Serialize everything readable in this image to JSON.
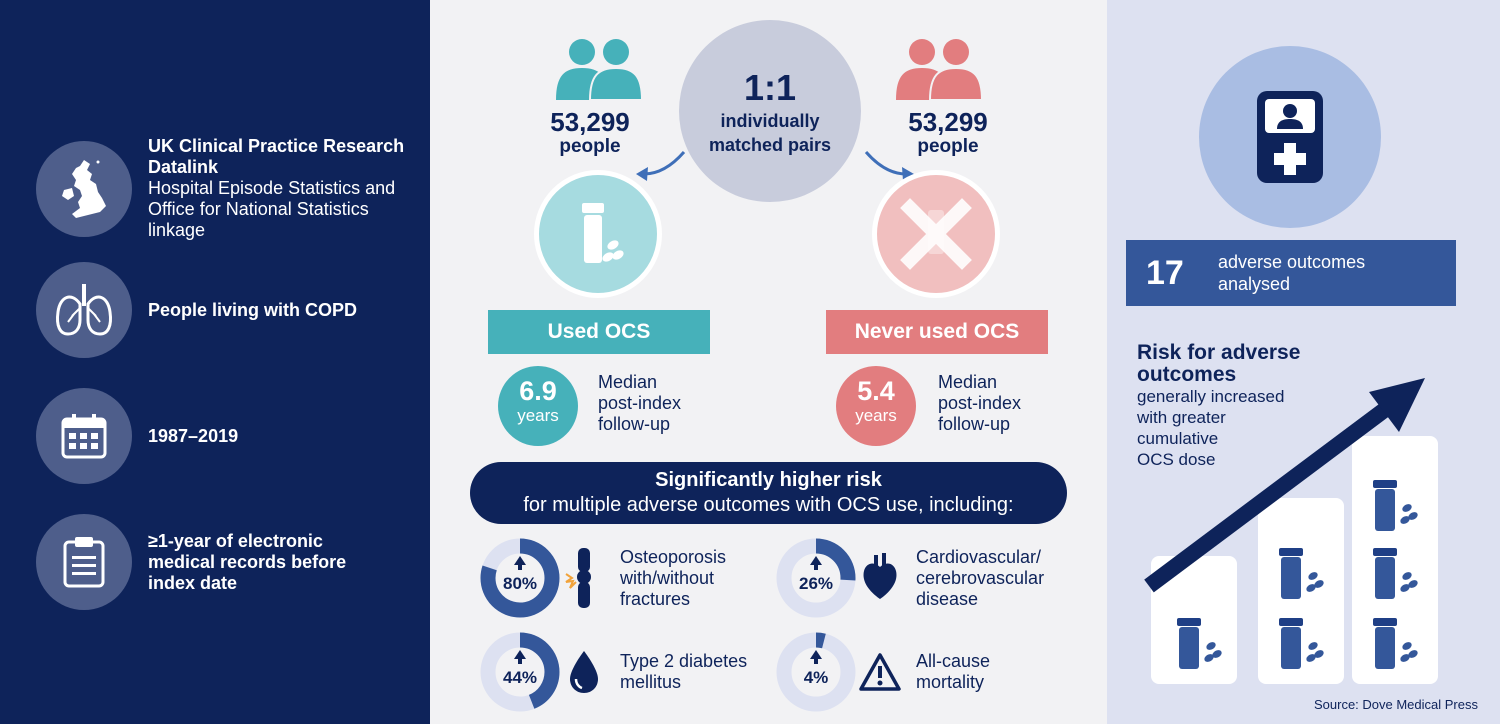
{
  "left": {
    "items": [
      {
        "icon": "uk-map-icon",
        "bold": "UK Clinical Practice Research Datalink",
        "text": "Hospital Episode Statistics and Office for National Statistics linkage"
      },
      {
        "icon": "lungs-icon",
        "bold": "People living with COPD",
        "text": ""
      },
      {
        "icon": "calendar-icon",
        "bold": "1987–2019",
        "text": ""
      },
      {
        "icon": "clipboard-icon",
        "bold": "≥1-year of electronic medical records before index date",
        "text": ""
      }
    ]
  },
  "center": {
    "ratio": {
      "value": "1:1",
      "label_line1": "individually",
      "label_line2": "matched pairs"
    },
    "used": {
      "count": "53,299",
      "unit": "people",
      "label": "Used OCS",
      "years": "6.9",
      "years_unit": "years",
      "median_l1": "Median",
      "median_l2": "post-index",
      "median_l3": "follow-up"
    },
    "never": {
      "count": "53,299",
      "unit": "people",
      "label": "Never used OCS",
      "years": "5.4",
      "years_unit": "years",
      "median_l1": "Median",
      "median_l2": "post-index",
      "median_l3": "follow-up"
    },
    "banner": {
      "line1": "Significantly higher risk",
      "line2": "for multiple adverse outcomes with OCS use, including:"
    },
    "outcomes": [
      {
        "pct_label": "80%",
        "pct": 0.8,
        "icon": "bone-joint-icon",
        "l1": "Osteoporosis",
        "l2": "with/without",
        "l3": "fractures"
      },
      {
        "pct_label": "26%",
        "pct": 0.26,
        "icon": "heart-icon",
        "l1": "Cardiovascular/",
        "l2": "cerebrovascular",
        "l3": "disease"
      },
      {
        "pct_label": "44%",
        "pct": 0.44,
        "icon": "drop-icon",
        "l1": "Type 2 diabetes",
        "l2": "mellitus",
        "l3": ""
      },
      {
        "pct_label": "4%",
        "pct": 0.04,
        "icon": "warning-icon",
        "l1": "All-cause",
        "l2": "mortality",
        "l3": ""
      }
    ]
  },
  "right": {
    "device_icon": "medical-id-icon",
    "stat_number": "17",
    "stat_l1": "adverse outcomes",
    "stat_l2": "analysed",
    "risk_title_l1": "Risk for adverse",
    "risk_title_l2": "outcomes",
    "risk_text_l1": "generally increased",
    "risk_text_l2": "with greater",
    "risk_text_l3": "cumulative",
    "risk_text_l4": "OCS dose",
    "source": "Source: Dove Medical Press"
  },
  "colors": {
    "navy": "#0e235a",
    "teal": "#46b1ba",
    "salmon": "#e27d7f",
    "grey": "#c8ccdc"
  }
}
